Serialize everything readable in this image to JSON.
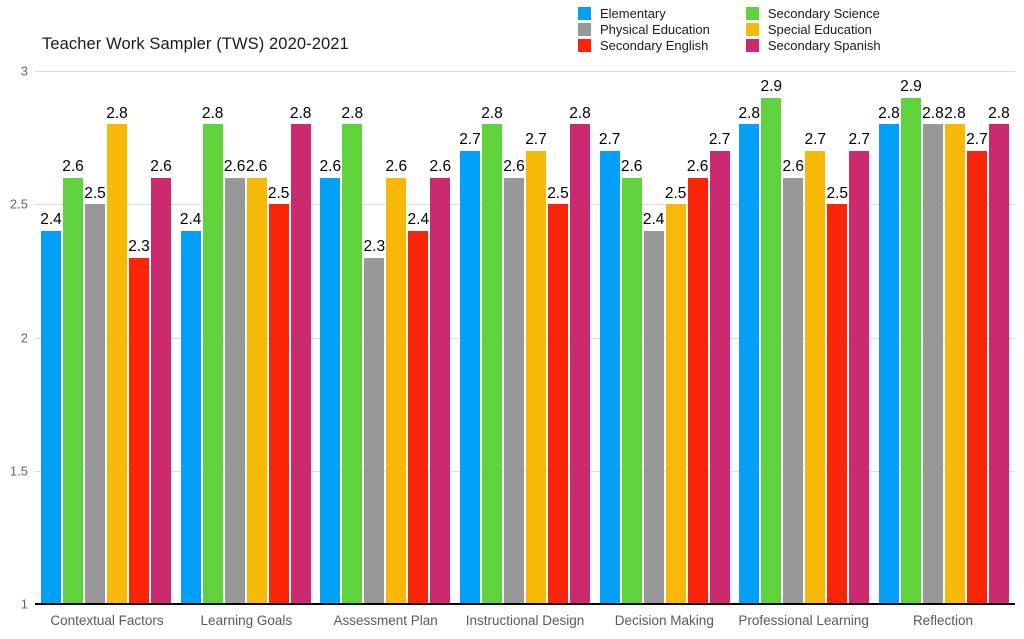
{
  "chart_data": {
    "type": "bar",
    "title": "Teacher Work Sampler (TWS) 2020-2021",
    "categories": [
      "Contextual Factors",
      "Learning Goals",
      "Assessment Plan",
      "Instructional Design",
      "Decision Making",
      "Professional Learning",
      "Reflection"
    ],
    "series": [
      {
        "name": "Elementary",
        "color": "#03A0FA",
        "values": [
          2.4,
          2.4,
          2.6,
          2.7,
          2.7,
          2.8,
          2.8
        ]
      },
      {
        "name": "Secondary Science",
        "color": "#5FD23E",
        "values": [
          2.6,
          2.8,
          2.8,
          2.8,
          2.6,
          2.9,
          2.9
        ]
      },
      {
        "name": "Physical Education",
        "color": "#989898",
        "values": [
          2.5,
          2.6,
          2.3,
          2.6,
          2.4,
          2.6,
          2.8
        ]
      },
      {
        "name": "Special Education",
        "color": "#F7B908",
        "values": [
          2.8,
          2.6,
          2.6,
          2.7,
          2.5,
          2.7,
          2.8
        ]
      },
      {
        "name": "Secondary English",
        "color": "#FA2508",
        "values": [
          2.3,
          2.5,
          2.4,
          2.5,
          2.6,
          2.5,
          2.7
        ]
      },
      {
        "name": "Secondary Spanish",
        "color": "#CB2A6E",
        "values": [
          2.6,
          2.8,
          2.6,
          2.8,
          2.7,
          2.7,
          2.8
        ]
      }
    ],
    "legend": {
      "position": "top-right",
      "columns": [
        [
          "Elementary",
          "Physical Education",
          "Secondary English"
        ],
        [
          "Secondary Science",
          "Special Education",
          "Secondary Spanish"
        ]
      ]
    },
    "ylim": [
      1,
      3
    ],
    "yticks": [
      3,
      2.5,
      2,
      1.5,
      1
    ],
    "ytick_labels": [
      "3",
      "2.5",
      "2",
      "1.5",
      "1"
    ],
    "data_labels": true,
    "grid": true,
    "grid_color": "#DCDCDC",
    "axis_line_color": "#000000",
    "data_label_color": "#000000",
    "tick_label_color": "#666666",
    "category_label_color": "#5A5A5A",
    "background": "#FFFFFF"
  }
}
